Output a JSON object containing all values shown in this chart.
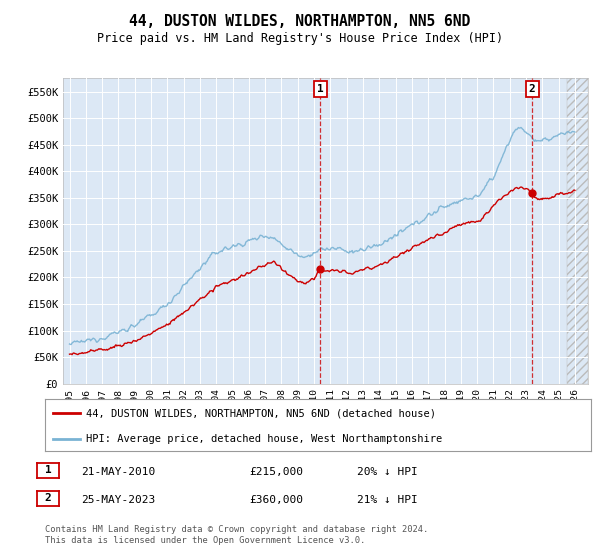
{
  "title": "44, DUSTON WILDES, NORTHAMPTON, NN5 6ND",
  "subtitle": "Price paid vs. HM Land Registry's House Price Index (HPI)",
  "ylabel_ticks": [
    "£0",
    "£50K",
    "£100K",
    "£150K",
    "£200K",
    "£250K",
    "£300K",
    "£350K",
    "£400K",
    "£450K",
    "£500K",
    "£550K"
  ],
  "ytick_values": [
    0,
    50000,
    100000,
    150000,
    200000,
    250000,
    300000,
    350000,
    400000,
    450000,
    500000,
    550000
  ],
  "ylim": [
    0,
    575000
  ],
  "xlim_start": 1994.6,
  "xlim_end": 2026.8,
  "xtick_labels": [
    "1995",
    "1996",
    "1997",
    "1998",
    "1999",
    "2000",
    "2001",
    "2002",
    "2003",
    "2004",
    "2005",
    "2006",
    "2007",
    "2008",
    "2009",
    "2010",
    "2011",
    "2012",
    "2013",
    "2014",
    "2015",
    "2016",
    "2017",
    "2018",
    "2019",
    "2020",
    "2021",
    "2022",
    "2023",
    "2024",
    "2025",
    "2026"
  ],
  "hpi_color": "#7ab3d4",
  "price_color": "#cc0000",
  "purchase1_x": 2010.38,
  "purchase1_y": 215000,
  "purchase2_x": 2023.38,
  "purchase2_y": 360000,
  "legend_label1": "44, DUSTON WILDES, NORTHAMPTON, NN5 6ND (detached house)",
  "legend_label2": "HPI: Average price, detached house, West Northamptonshire",
  "table_row1": [
    "1",
    "21-MAY-2010",
    "£215,000",
    "20% ↓ HPI"
  ],
  "table_row2": [
    "2",
    "25-MAY-2023",
    "£360,000",
    "21% ↓ HPI"
  ],
  "footer": "Contains HM Land Registry data © Crown copyright and database right 2024.\nThis data is licensed under the Open Government Licence v3.0.",
  "bg_color": "#ffffff",
  "plot_bg_color": "#dce8f5",
  "grid_color": "#ffffff"
}
